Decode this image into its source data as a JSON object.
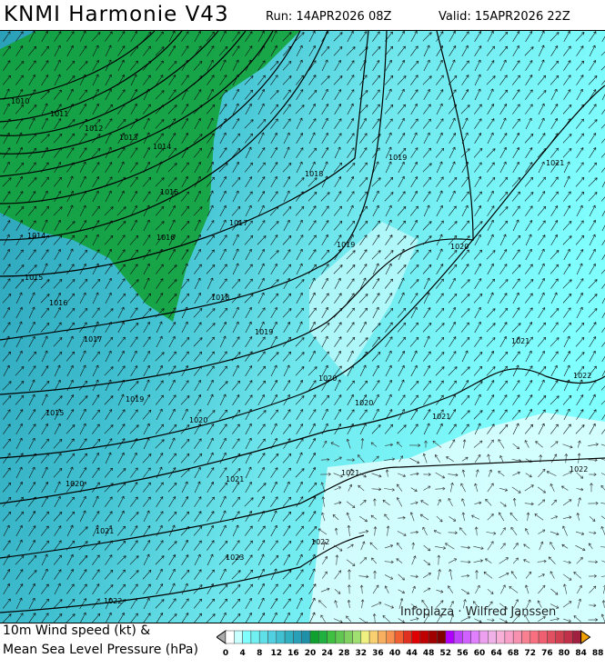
{
  "header": {
    "title": "KNMI Harmonie V43",
    "run": "Run: 14APR2026 08Z",
    "valid": "Valid: 15APR2026 22Z"
  },
  "map": {
    "credit": "Infoplaza · Wilfred Janssen",
    "isobar_labels": [
      "1010",
      "1011",
      "1012",
      "1013",
      "1014",
      "1015",
      "1016",
      "1017",
      "1018",
      "1019",
      "1021",
      "1014",
      "1015",
      "1016",
      "1018",
      "1019",
      "1020",
      "1019",
      "1017",
      "1019",
      "1021",
      "1022",
      "1020",
      "1020",
      "1021",
      "1015",
      "1020",
      "1021",
      "1021",
      "1020",
      "1022",
      "1021",
      "1022",
      "1023",
      "1022"
    ],
    "prevailing_wind": "southwest",
    "colors": {
      "land_calm": "#ffffff",
      "low": "#80ffff",
      "mid": "#30b0c0",
      "high": "#10a030"
    }
  },
  "legend": {
    "line1": "10m Wind speed (kt) &",
    "line2": "Mean Sea Level Pressure (hPa)",
    "ticks": [
      "0",
      "4",
      "8",
      "12",
      "16",
      "20",
      "24",
      "28",
      "32",
      "36",
      "40",
      "44",
      "48",
      "52",
      "56",
      "60",
      "64",
      "68",
      "72",
      "76",
      "80",
      "84",
      "88"
    ],
    "colors": [
      "#ffffff",
      "#c8ffff",
      "#80ffff",
      "#70f0f0",
      "#5fe0e8",
      "#50d0e0",
      "#40c0d0",
      "#30b0c0",
      "#2aa0b8",
      "#2090a8",
      "#10a030",
      "#20b040",
      "#40c040",
      "#60c850",
      "#80d060",
      "#a0e070",
      "#f0f080",
      "#f8d070",
      "#f8b060",
      "#f89050",
      "#f06030",
      "#e03020",
      "#e00000",
      "#c00000",
      "#a00000",
      "#800000",
      "#b000ff",
      "#c040ff",
      "#d060ff",
      "#e080ff",
      "#eea0f0",
      "#f0b0e8",
      "#f8b0d8",
      "#f8a0c8",
      "#f890b0",
      "#f88090",
      "#f87080",
      "#f06070",
      "#e05060",
      "#d04050",
      "#c03048",
      "#a02040"
    ]
  }
}
